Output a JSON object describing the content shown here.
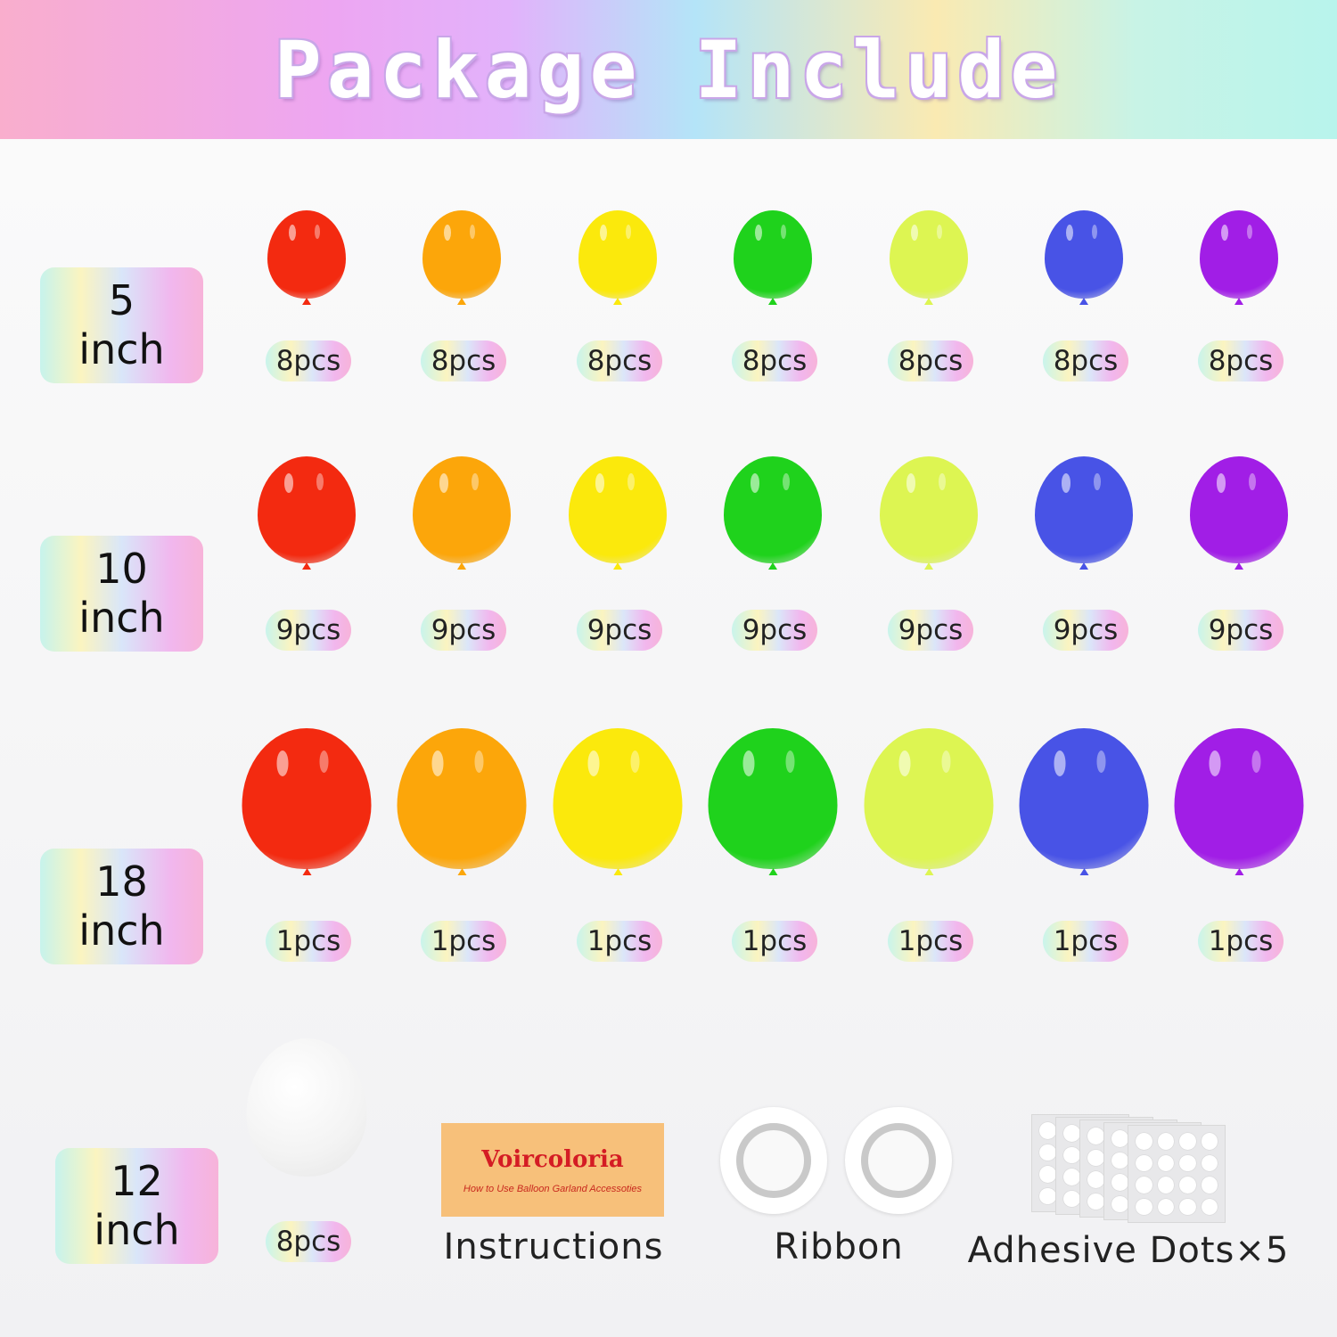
{
  "header": {
    "title": "Package Include"
  },
  "colors": [
    "#f32a10",
    "#fca60a",
    "#fbe90c",
    "#1fd21c",
    "#ddf552",
    "#4853e6",
    "#a11ee6"
  ],
  "rows": [
    {
      "size_num": "5",
      "size_unit": "inch",
      "qty": "8pcs",
      "scale": "small"
    },
    {
      "size_num": "10",
      "size_unit": "inch",
      "qty": "9pcs",
      "scale": "medium"
    },
    {
      "size_num": "18",
      "size_unit": "inch",
      "qty": "1pcs",
      "scale": "large"
    }
  ],
  "white": {
    "size_num": "12",
    "size_unit": "inch",
    "qty": "8pcs",
    "color": "#ffffff"
  },
  "accessories": {
    "instructions_label": "Instructions",
    "card_brand": "Voircoloria",
    "card_subtitle": "How to Use Balloon Garland Accessoties",
    "ribbon_label": "Ribbon",
    "dots_label": "Adhesive Dots×5"
  }
}
